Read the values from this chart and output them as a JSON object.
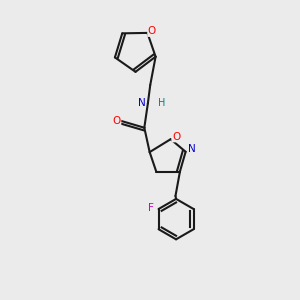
{
  "background_color": "#ebebeb",
  "bond_color": "#1a1a1a",
  "atom_colors": {
    "O": "#ff0000",
    "N": "#0000cc",
    "F": "#cc00cc",
    "H": "#008080",
    "C": "#1a1a1a"
  },
  "figsize": [
    3.0,
    3.0
  ],
  "dpi": 100
}
